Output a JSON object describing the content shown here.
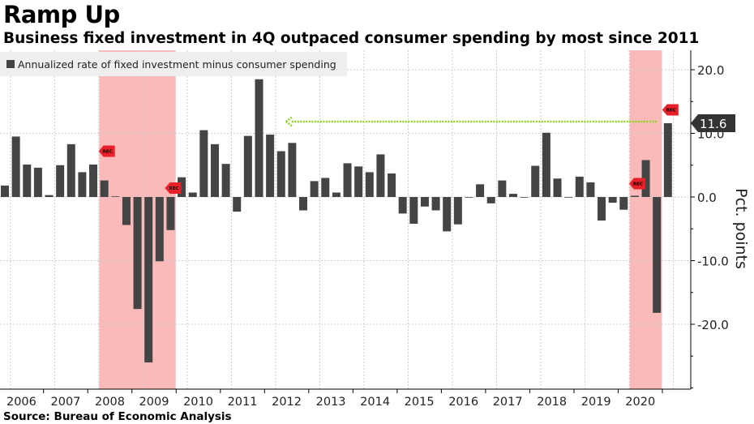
{
  "header": {
    "title": "Ramp Up",
    "subtitle": "Business fixed investment in 4Q outpaced consumer spending by most since 2011"
  },
  "footer": {
    "source": "Source: Bureau of Economic Analysis"
  },
  "colors": {
    "bar": "#444444",
    "recession_band": "#f9a3a3",
    "recession_marker": "#e8202a",
    "comparison_arrow": "#8cd322",
    "callout": "#333333",
    "grid": "#cccccc"
  },
  "chart_data": {
    "type": "bar",
    "legend": {
      "label": "Annualized rate of fixed investment minus consumer spending",
      "position": "top-left"
    },
    "ylabel": "Pct. points",
    "ylim": [
      -30,
      22.5
    ],
    "yticks": [
      -20,
      -10,
      0,
      10,
      20
    ],
    "ytick_labels": [
      "-20.0",
      "-10.0",
      "0.0",
      "10.0",
      "20.0"
    ],
    "y_axis_position": "right",
    "grid": true,
    "x_start": "2005Q4",
    "year_labels": [
      "2006",
      "2007",
      "2008",
      "2009",
      "2010",
      "2011",
      "2012",
      "2013",
      "2014",
      "2015",
      "2016",
      "2017",
      "2018",
      "2019",
      "2020"
    ],
    "values": [
      1.8,
      9.5,
      5.1,
      4.6,
      0.3,
      5.0,
      8.3,
      3.9,
      5.1,
      2.6,
      0.1,
      -4.4,
      -17.6,
      -26.0,
      -10.1,
      -5.2,
      3.1,
      0.7,
      10.5,
      8.3,
      5.2,
      -2.3,
      9.6,
      18.5,
      9.8,
      7.2,
      8.5,
      -2.1,
      2.5,
      3.0,
      0.7,
      5.3,
      4.8,
      3.9,
      6.7,
      3.7,
      -2.6,
      -4.2,
      -1.5,
      -2.1,
      -5.4,
      -4.3,
      -0.1,
      2.0,
      -1.0,
      2.6,
      0.5,
      -0.1,
      4.9,
      10.1,
      2.9,
      0.0,
      3.2,
      2.3,
      -3.7,
      -0.9,
      -2.0,
      0.2,
      5.8,
      -18.2,
      11.6
    ],
    "recessions": [
      {
        "start_index": 9,
        "end_index": 15
      },
      {
        "start_index": 57,
        "end_index": 59
      }
    ],
    "recession_markers": [
      {
        "index": 9,
        "label": "REC",
        "value": 7.2
      },
      {
        "index": 15,
        "label": "REC",
        "value": 1.4
      },
      {
        "index": 57,
        "label": "REC",
        "value": 2.1
      },
      {
        "index": 60,
        "label": "REC",
        "value": 13.7
      }
    ],
    "comparison_arrow": {
      "from_index": 60,
      "to_index": 25,
      "value": 11.6
    },
    "last_value_label": "11.6"
  }
}
